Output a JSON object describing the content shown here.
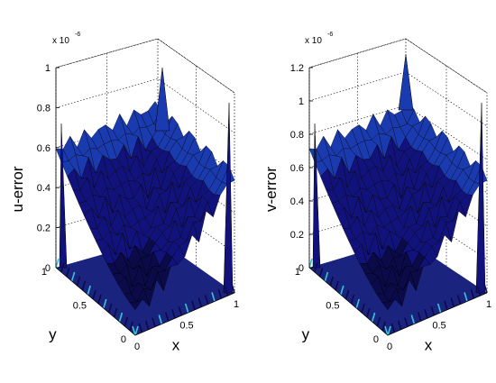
{
  "chart_data": [
    {
      "type": "surface",
      "zlabel": "u-error",
      "xlabel": "x",
      "ylabel": "y",
      "exponent": "x 10",
      "exponent_power": "-6",
      "zlim": [
        0,
        1
      ],
      "z_ticks": [
        "0",
        "0.2",
        "0.4",
        "0.6",
        "0.8",
        "1"
      ],
      "z_values": [
        0,
        0.2,
        0.4,
        0.6,
        0.8,
        1.0
      ],
      "x_ticks": [
        "0",
        "0.5",
        "1"
      ],
      "y_ticks": [
        "0",
        "0.5",
        "1"
      ],
      "grid": true,
      "peak_value": 1.0,
      "colormap": [
        "#0b0b4a",
        "#12127c",
        "#1a3ab0",
        "#2d6fd1",
        "#34c6d6",
        "#7dffe0"
      ],
      "surface_color": "#1c2a9a"
    },
    {
      "type": "surface",
      "zlabel": "v-error",
      "xlabel": "x",
      "ylabel": "y",
      "exponent": "x 10",
      "exponent_power": "-6",
      "zlim": [
        0,
        1.2
      ],
      "z_ticks": [
        "0",
        "0.2",
        "0.4",
        "0.6",
        "0.8",
        "1",
        "1.2"
      ],
      "z_values": [
        0,
        0.2,
        0.4,
        0.6,
        0.8,
        1.0,
        1.2
      ],
      "x_ticks": [
        "0",
        "0.5",
        "1"
      ],
      "y_ticks": [
        "0",
        "0.5",
        "1"
      ],
      "grid": true,
      "peak_value": 1.28,
      "colormap": [
        "#0b0b4a",
        "#12127c",
        "#1a3ab0",
        "#2d6fd1",
        "#34c6d6",
        "#7dffe0"
      ],
      "surface_color": "#1c2a9a"
    }
  ]
}
